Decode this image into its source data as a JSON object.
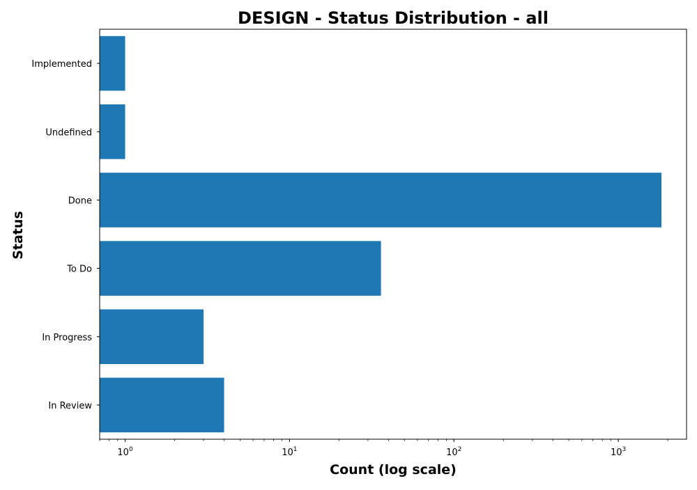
{
  "chart_data": {
    "type": "bar",
    "orientation": "horizontal",
    "title": "DESIGN - Status Distribution - all",
    "xlabel": "Count (log scale)",
    "ylabel": "Status",
    "x_scale": "log",
    "xlim": [
      0.7,
      2600
    ],
    "categories": [
      "Implemented",
      "Undefined",
      "Done",
      "To Do",
      "In Progress",
      "In Review"
    ],
    "values": [
      1,
      1,
      1830,
      36,
      3,
      4
    ],
    "x_major_ticks": [
      {
        "base": "10",
        "exp": "0",
        "value": 1
      },
      {
        "base": "10",
        "exp": "1",
        "value": 10
      },
      {
        "base": "10",
        "exp": "2",
        "value": 100
      },
      {
        "base": "10",
        "exp": "3",
        "value": 1000
      }
    ],
    "bar_color": "#1f77b4",
    "grid": false,
    "legend": "none"
  }
}
